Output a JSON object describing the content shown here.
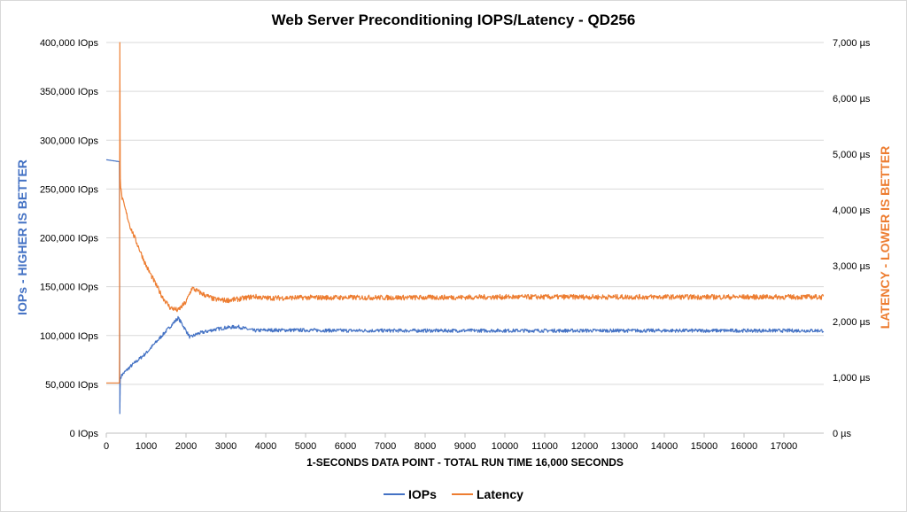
{
  "chart_data": {
    "type": "line",
    "title": "Web Server Preconditioning IOPS/Latency - QD256",
    "xlabel": "1-SECONDS DATA POINT - TOTAL RUN TIME 16,000 SECONDS",
    "ylabel_left": "IOPs - HIGHER IS BETTER",
    "ylabel_right": "LATENCY - LOWER IS BETTER",
    "xlim": [
      0,
      18000
    ],
    "x_ticks": [
      0,
      1000,
      2000,
      3000,
      4000,
      5000,
      6000,
      7000,
      8000,
      9000,
      10000,
      11000,
      12000,
      13000,
      14000,
      15000,
      16000,
      17000
    ],
    "ylim_left": [
      0,
      400000
    ],
    "y_ticks_left": [
      "0 IOps",
      "50,000 IOps",
      "100,000 IOps",
      "150,000 IOps",
      "200,000 IOps",
      "250,000 IOps",
      "300,000 IOps",
      "350,000 IOps",
      "400,000 IOps"
    ],
    "ylim_right": [
      0,
      7000
    ],
    "y_ticks_right": [
      "0 µs",
      "1,000 µs",
      "2,000 µs",
      "3,000 µs",
      "4,000 µs",
      "5,000 µs",
      "6,000 µs",
      "7,000 µs"
    ],
    "grid": true,
    "legend_position": "bottom",
    "series": [
      {
        "name": "IOPs",
        "axis": "left",
        "color": "#4472C4",
        "x": [
          0,
          330,
          340,
          350,
          360,
          400,
          600,
          1000,
          1400,
          1800,
          1900,
          2100,
          2300,
          2700,
          3000,
          3300,
          3700,
          4000,
          5000,
          6000,
          8000,
          10000,
          12000,
          14000,
          16000,
          18000
        ],
        "y": [
          280000,
          278000,
          20000,
          55000,
          57000,
          60000,
          68000,
          82000,
          100000,
          118000,
          112000,
          98000,
          102000,
          106000,
          108000,
          109000,
          105000,
          105500,
          105500,
          105000,
          105000,
          105000,
          105000,
          105000,
          105000,
          105000
        ]
      },
      {
        "name": "Latency",
        "axis": "right",
        "color": "#ED7D31",
        "x": [
          0,
          330,
          340,
          350,
          360,
          400,
          600,
          1000,
          1400,
          1600,
          1800,
          2000,
          2150,
          2400,
          2700,
          3000,
          3300,
          3700,
          4000,
          5000,
          6000,
          8000,
          10000,
          12000,
          14000,
          16000,
          18000
        ],
        "y": [
          900,
          900,
          7000,
          4600,
          4400,
          4200,
          3700,
          3000,
          2450,
          2250,
          2200,
          2350,
          2600,
          2500,
          2400,
          2380,
          2400,
          2450,
          2420,
          2430,
          2430,
          2430,
          2440,
          2440,
          2440,
          2440,
          2440
        ]
      }
    ]
  }
}
